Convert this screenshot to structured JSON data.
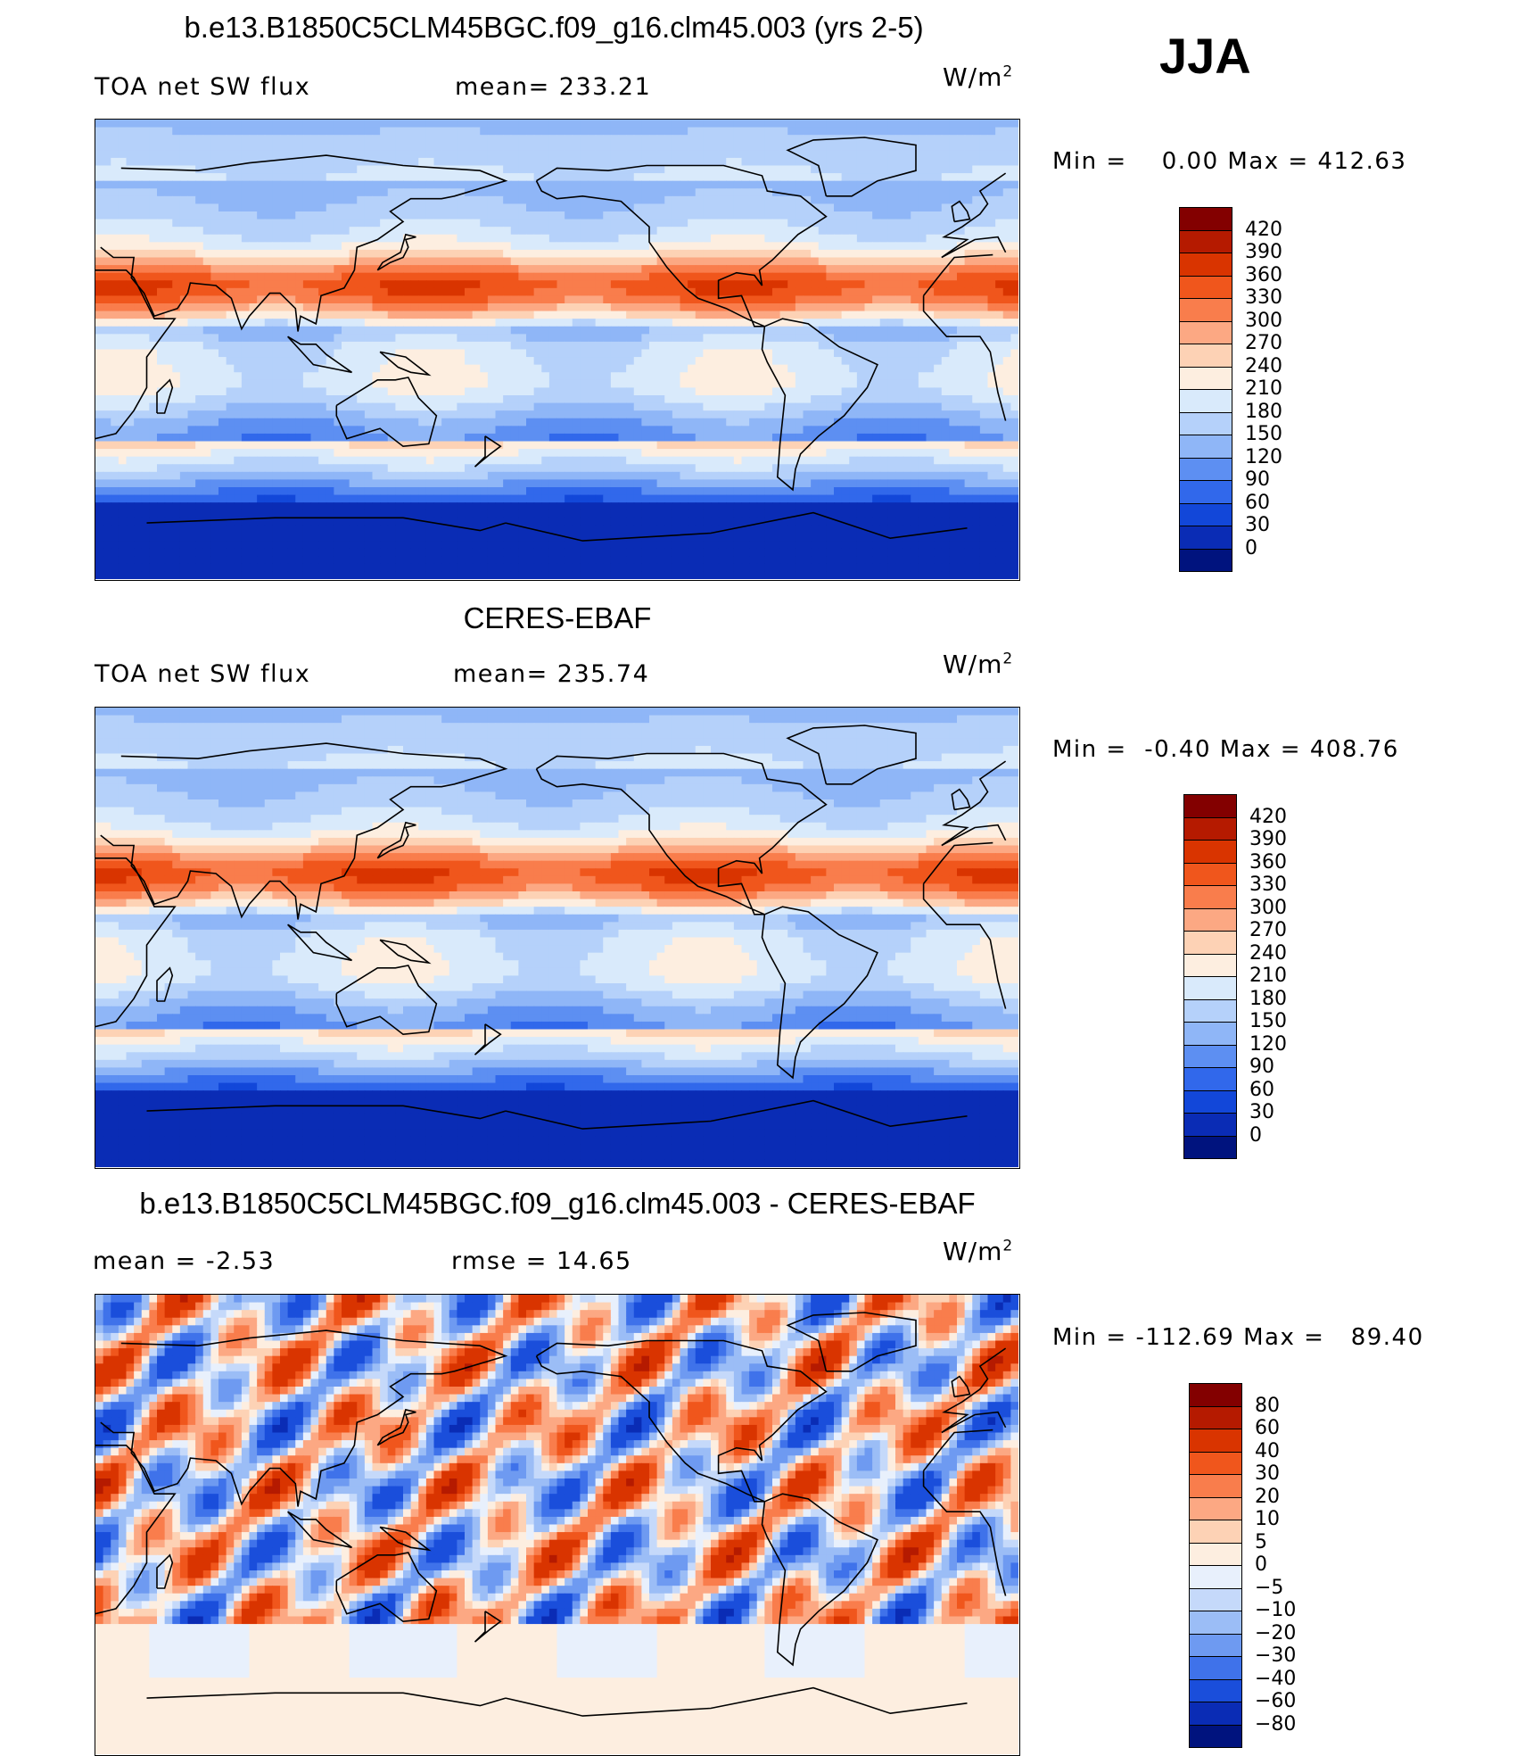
{
  "season": "JJA",
  "chart_data": [
    {
      "type": "heatmap",
      "title": "b.e13.B1850C5CLM45BGC.f09_g16.clm45.003 (yrs 2-5)",
      "left_label": "TOA net SW flux",
      "center_label": "mean= 233.21",
      "units": "W/m",
      "units_exp": "2",
      "min_label": "Min =",
      "min_value": "0.00",
      "max_label": "Max =",
      "max_value": "412.63",
      "field": "model",
      "colorbar": {
        "levels": [
          "420",
          "390",
          "360",
          "330",
          "300",
          "270",
          "240",
          "210",
          "180",
          "150",
          "120",
          "90",
          "60",
          "30",
          "0"
        ],
        "colors": [
          "#830000",
          "#b51a00",
          "#d93400",
          "#f0561c",
          "#f97d4c",
          "#fca883",
          "#fdd2b5",
          "#fdeee0",
          "#d9eafb",
          "#b5d1fa",
          "#8fb6f7",
          "#5d8ff2",
          "#3168eb",
          "#1247d9",
          "#0a2cb5",
          "#00137e"
        ]
      }
    },
    {
      "type": "heatmap",
      "title": "CERES-EBAF",
      "left_label": "TOA net SW flux",
      "center_label": "mean= 235.74",
      "units": "W/m",
      "units_exp": "2",
      "min_label": "Min =",
      "min_value": "-0.40",
      "max_label": "Max =",
      "max_value": "408.76",
      "field": "obs",
      "colorbar": {
        "levels": [
          "420",
          "390",
          "360",
          "330",
          "300",
          "270",
          "240",
          "210",
          "180",
          "150",
          "120",
          "90",
          "60",
          "30",
          "0"
        ],
        "colors": [
          "#830000",
          "#b51a00",
          "#d93400",
          "#f0561c",
          "#f97d4c",
          "#fca883",
          "#fdd2b5",
          "#fdeee0",
          "#d9eafb",
          "#b5d1fa",
          "#8fb6f7",
          "#5d8ff2",
          "#3168eb",
          "#1247d9",
          "#0a2cb5",
          "#00137e"
        ]
      }
    },
    {
      "type": "heatmap",
      "title": "b.e13.B1850C5CLM45BGC.f09_g16.clm45.003 - CERES-EBAF",
      "left_label": "mean =  -2.53",
      "center_label": "rmse =  14.65",
      "units": "W/m",
      "units_exp": "2",
      "min_label": "Min =",
      "min_value": "-112.69",
      "max_label": "Max =",
      "max_value": "89.40",
      "field": "diff",
      "colorbar": {
        "levels": [
          "80",
          "60",
          "40",
          "30",
          "20",
          "10",
          "5",
          "0",
          "-5",
          "-10",
          "-20",
          "-30",
          "-40",
          "-60",
          "-80"
        ],
        "colors": [
          "#830000",
          "#b51a00",
          "#d93400",
          "#f0561c",
          "#f97d4c",
          "#fca883",
          "#fdd2b5",
          "#fdeee0",
          "#e8f0fc",
          "#c5d9fa",
          "#9bbdf6",
          "#6e9af1",
          "#3f72ea",
          "#1a4edb",
          "#0a2cb5",
          "#00137e"
        ]
      }
    }
  ]
}
